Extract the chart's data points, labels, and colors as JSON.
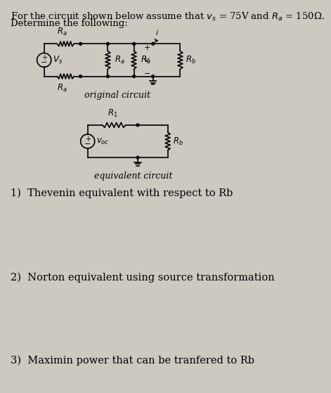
{
  "bg_color": "#cdc8c0",
  "title_line1": "For the circuit shown below assume that $v_s$ = 75V and $R_a$ = 150Ω.",
  "title_line2": "Determine the following:",
  "item1": "1)  Thevenin equivalent with respect to Rb",
  "item2": "2)  Norton equivalent using source transformation",
  "item3": "3)  Maximin power that can be tranfered to Rb",
  "orig_label": "original circuit",
  "equiv_label": "equivalent circuit",
  "font_size_title": 9.5,
  "font_size_label": 8.5,
  "font_size_items": 10.5
}
